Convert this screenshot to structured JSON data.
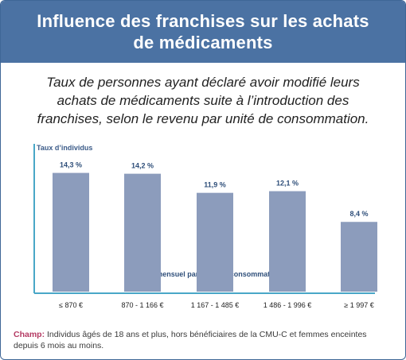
{
  "header": {
    "title_line1": "Influence des franchises sur les achats",
    "title_line2": "de médicaments"
  },
  "subtitle": {
    "line1": "Taux de personnes ayant déclaré avoir modifié leurs",
    "line2": "achats de médicaments suite à l’introduction des",
    "line3": "franchises, selon le revenu par unité de consommation."
  },
  "colors": {
    "header_bg": "#4b72a3",
    "bar": "#8c9cbc",
    "axis": "#49a7c7",
    "champ": "#b43a63"
  },
  "chart_data": {
    "type": "bar",
    "ylabel": "Taux d’individus",
    "xlabel": "Revenu mensuel par unité de consommation",
    "categories": [
      "≤ 870  €",
      "870 - 1 166  €",
      "1 167 - 1 485  €",
      "1 486 - 1 996 €",
      "≥ 1 997  €"
    ],
    "values": [
      14.3,
      14.2,
      11.9,
      12.1,
      8.4
    ],
    "value_labels": [
      "14,3 %",
      "14,2 %",
      "11,9 %",
      "12,1 %",
      "8,4 %"
    ],
    "ylim": [
      0,
      17.8
    ],
    "grid": false,
    "legend": "none"
  },
  "footnote": {
    "champ_label": "Champ:",
    "line1": " Individus âgés de 18 ans et plus, hors bénéficiaires de la CMU-C et femmes enceintes",
    "line2": "depuis 6 mois au moins."
  }
}
